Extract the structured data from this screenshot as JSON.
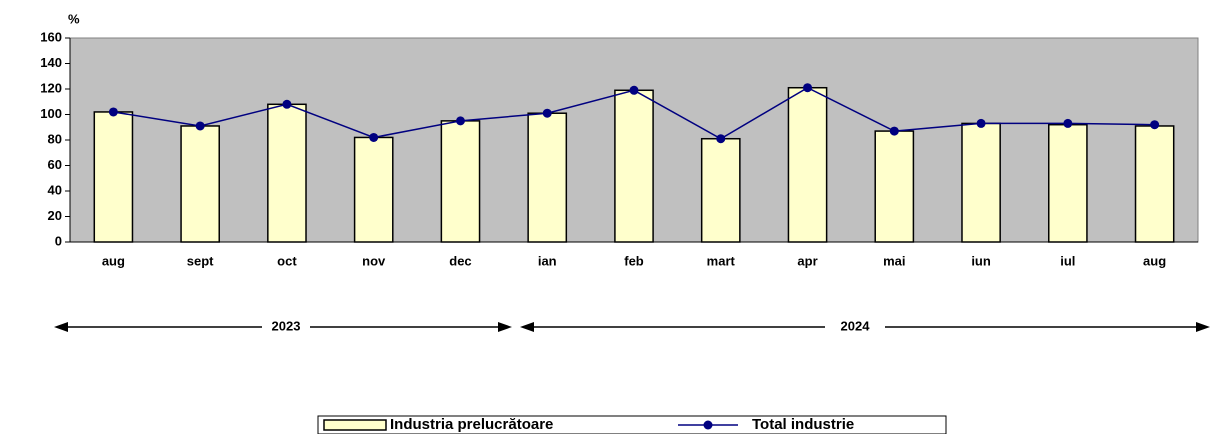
{
  "chart_data": {
    "type": "bar",
    "y_label": "%",
    "categories": [
      "aug",
      "sept",
      "oct",
      "nov",
      "dec",
      "ian",
      "feb",
      "mart",
      "apr",
      "mai",
      "iun",
      "iul",
      "aug"
    ],
    "series": [
      {
        "name": "Industria prelucrătoare",
        "type": "bar",
        "color": "#ffffcc",
        "values": [
          102,
          91,
          108,
          82,
          95,
          101,
          119,
          81,
          121,
          87,
          93,
          92,
          91
        ]
      },
      {
        "name": "Total industrie",
        "type": "line",
        "color": "#000080",
        "values": [
          102,
          91,
          108,
          82,
          95,
          101,
          119,
          81,
          121,
          87,
          93,
          93,
          92
        ]
      }
    ],
    "ylim": [
      0,
      160
    ],
    "yticks": [
      0,
      20,
      40,
      60,
      80,
      100,
      120,
      140,
      160
    ],
    "plot_background": "#c0c0c0",
    "annotations": [
      {
        "text": "2023"
      },
      {
        "text": "2024"
      }
    ]
  }
}
